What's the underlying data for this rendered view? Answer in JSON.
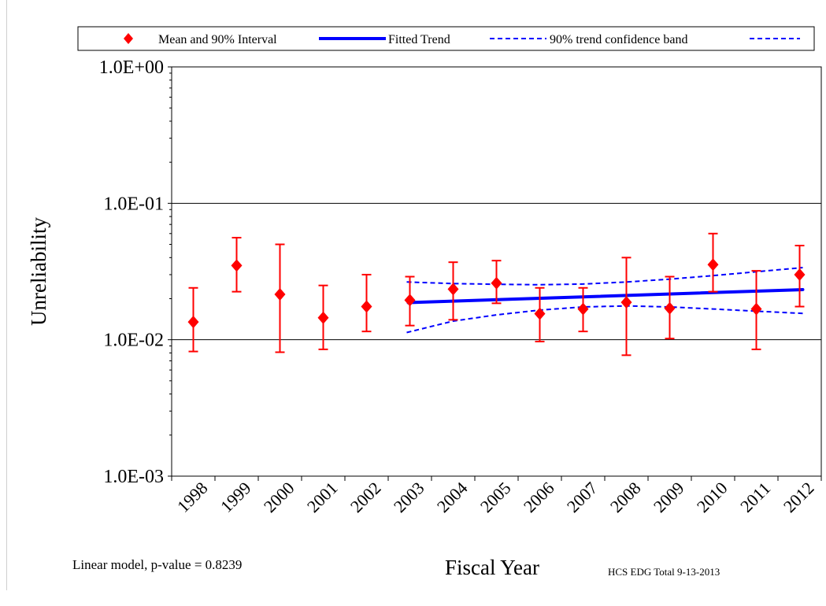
{
  "chart_data": {
    "type": "scatter",
    "title": "",
    "xlabel": "Fiscal Year",
    "ylabel": "Unreliability",
    "y_scale": "log",
    "ylim": [
      0.001,
      1.0
    ],
    "y_ticks": [
      "1.0E-03",
      "1.0E-02",
      "1.0E-01",
      "1.0E+00"
    ],
    "y_tick_values": [
      0.001,
      0.01,
      0.1,
      1.0
    ],
    "grid": "horizontal major lines",
    "legend_position": "top",
    "categories": [
      "1998",
      "1999",
      "2000",
      "2001",
      "2002",
      "2003",
      "2004",
      "2005",
      "2006",
      "2007",
      "2008",
      "2009",
      "2010",
      "2011",
      "2012"
    ],
    "series": [
      {
        "name": "Mean and 90% Interval",
        "marker": "diamond",
        "color": "#ff0000",
        "mean": [
          0.0135,
          0.035,
          0.0215,
          0.0145,
          0.0175,
          0.0195,
          0.0235,
          0.026,
          0.0155,
          0.0168,
          0.0188,
          0.017,
          0.0355,
          0.0168,
          0.03
        ],
        "lower": [
          0.0082,
          0.0225,
          0.0081,
          0.0085,
          0.0115,
          0.0127,
          0.014,
          0.0185,
          0.0097,
          0.0115,
          0.0077,
          0.0102,
          0.0225,
          0.0085,
          0.0175
        ],
        "upper": [
          0.024,
          0.056,
          0.05,
          0.025,
          0.03,
          0.029,
          0.037,
          0.038,
          0.024,
          0.024,
          0.04,
          0.029,
          0.06,
          0.032,
          0.049
        ]
      },
      {
        "name": "Fitted Trend",
        "color": "#0000ff",
        "style": "solid-thick",
        "x": [
          "2003",
          "2012"
        ],
        "values": [
          0.0187,
          0.0233
        ]
      },
      {
        "name": "90% trend confidence band",
        "color": "#0000ff",
        "style": "dashed",
        "x": [
          "2003",
          "2004",
          "2005",
          "2006",
          "2007",
          "2008",
          "2009",
          "2010",
          "2011",
          "2012"
        ],
        "upper": [
          0.0265,
          0.0258,
          0.0255,
          0.0253,
          0.0256,
          0.0265,
          0.0278,
          0.0295,
          0.0315,
          0.0338
        ],
        "lower": [
          0.0113,
          0.0137,
          0.0152,
          0.0165,
          0.0174,
          0.0177,
          0.0174,
          0.0168,
          0.0162,
          0.0156
        ]
      }
    ],
    "annotations": {
      "model_note": "Linear model, p-value = 0.8239",
      "source_note": "HCS EDG  Total 9-13-2013"
    }
  }
}
